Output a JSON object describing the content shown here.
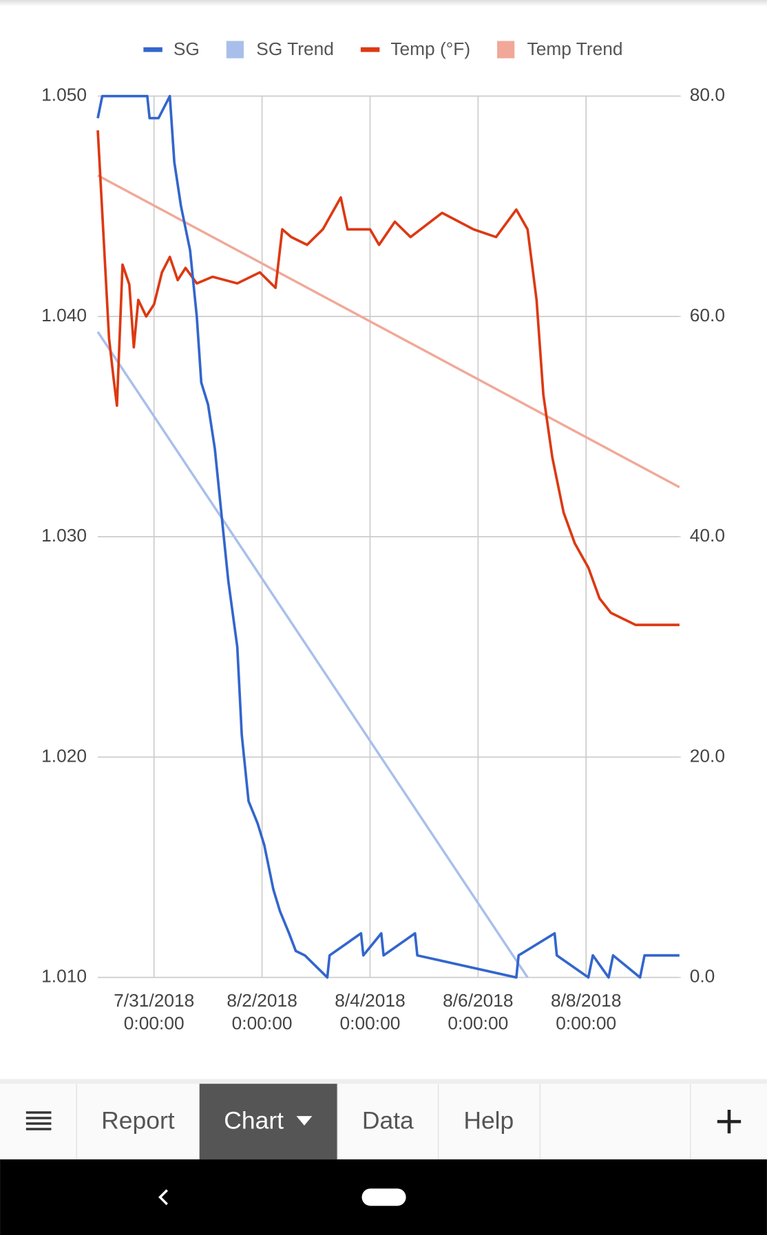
{
  "chart_data": {
    "type": "line",
    "xlim": [
      "2018-07-29T23:00",
      "2018-08-09T17:30"
    ],
    "xticks": [
      {
        "value": "2018-07-31T00:00",
        "label": "7/31/2018 0:00:00"
      },
      {
        "value": "2018-08-02T00:00",
        "label": "8/2/2018 0:00:00"
      },
      {
        "value": "2018-08-04T00:00",
        "label": "8/4/2018 0:00:00"
      },
      {
        "value": "2018-08-06T00:00",
        "label": "8/6/2018 0:00:00"
      },
      {
        "value": "2018-08-08T00:00",
        "label": "8/8/2018 0:00:00"
      }
    ],
    "ylim": [
      1.01,
      1.05
    ],
    "yticks": [
      {
        "value": 1.01,
        "label": "1.010"
      },
      {
        "value": 1.02,
        "label": "1.020"
      },
      {
        "value": 1.03,
        "label": "1.030"
      },
      {
        "value": 1.04,
        "label": "1.040"
      },
      {
        "value": 1.05,
        "label": "1.050"
      }
    ],
    "y2lim": [
      0,
      80
    ],
    "y2ticks": [
      {
        "value": 0,
        "label": "0.0"
      },
      {
        "value": 20,
        "label": "20.0"
      },
      {
        "value": 40,
        "label": "40.0"
      },
      {
        "value": 60,
        "label": "60.0"
      },
      {
        "value": 80,
        "label": "80.0"
      }
    ],
    "grid": true,
    "legend": "top",
    "series": [
      {
        "name": "SG",
        "color": "#3366cc",
        "legend_marker": "line",
        "x": [
          "2018-07-29T23:00",
          "2018-07-30T01:00",
          "2018-07-30T21:00",
          "2018-07-30T22:00",
          "2018-07-31T02:00",
          "2018-07-31T07:00",
          "2018-07-31T09:00",
          "2018-07-31T12:00",
          "2018-07-31T16:00",
          "2018-07-31T19:00",
          "2018-07-31T21:00",
          "2018-08-01T00:00",
          "2018-08-01T03:00",
          "2018-08-01T06:00",
          "2018-08-01T09:00",
          "2018-08-01T13:00",
          "2018-08-01T15:00",
          "2018-08-01T18:00",
          "2018-08-01T22:00",
          "2018-08-02T01:00",
          "2018-08-02T05:00",
          "2018-08-02T08:00",
          "2018-08-02T12:00",
          "2018-08-02T15:00",
          "2018-08-02T19:00",
          "2018-08-03T05:00",
          "2018-08-03T06:00",
          "2018-08-03T20:00",
          "2018-08-03T21:00",
          "2018-08-04T05:00",
          "2018-08-04T06:00",
          "2018-08-04T20:00",
          "2018-08-04T21:00",
          "2018-08-06T17:00",
          "2018-08-06T18:00",
          "2018-08-07T10:00",
          "2018-08-07T11:00",
          "2018-08-08T01:00",
          "2018-08-08T03:00",
          "2018-08-08T10:00",
          "2018-08-08T12:00",
          "2018-08-09T00:00",
          "2018-08-09T02:00",
          "2018-08-09T17:30"
        ],
        "values": [
          1.049,
          1.05,
          1.05,
          1.049,
          1.049,
          1.05,
          1.047,
          1.045,
          1.043,
          1.04,
          1.037,
          1.036,
          1.034,
          1.031,
          1.028,
          1.025,
          1.021,
          1.018,
          1.017,
          1.016,
          1.014,
          1.013,
          1.012,
          1.0112,
          1.011,
          1.01,
          1.011,
          1.012,
          1.011,
          1.012,
          1.011,
          1.012,
          1.011,
          1.01,
          1.011,
          1.012,
          1.011,
          1.01,
          1.011,
          1.01,
          1.011,
          1.01,
          1.011,
          1.011
        ]
      },
      {
        "name": "SG Trend",
        "color": "#a9bfeb",
        "legend_marker": "square",
        "x": [
          "2018-07-29T23:00",
          "2018-08-06T22:00"
        ],
        "values": [
          1.0393,
          1.01
        ]
      },
      {
        "name": "Temp (°F)",
        "color": "#dc3912",
        "legend_marker": "line",
        "axis": "y2",
        "x": [
          "2018-07-29T23:00",
          "2018-07-30T01:00",
          "2018-07-30T04:00",
          "2018-07-30T06:00",
          "2018-07-30T07:30",
          "2018-07-30T10:00",
          "2018-07-30T13:00",
          "2018-07-30T15:00",
          "2018-07-30T17:00",
          "2018-07-30T20:30",
          "2018-07-31T00:00",
          "2018-07-31T03:30",
          "2018-07-31T07:00",
          "2018-07-31T10:30",
          "2018-07-31T14:00",
          "2018-07-31T19:00",
          "2018-08-01T02:00",
          "2018-08-01T13:00",
          "2018-08-01T23:00",
          "2018-08-02T06:00",
          "2018-08-02T09:00",
          "2018-08-02T13:00",
          "2018-08-02T20:00",
          "2018-08-03T03:00",
          "2018-08-03T11:00",
          "2018-08-03T14:00",
          "2018-08-04T00:00",
          "2018-08-04T04:00",
          "2018-08-04T11:00",
          "2018-08-04T18:00",
          "2018-08-05T08:00",
          "2018-08-05T22:00",
          "2018-08-06T08:00",
          "2018-08-06T17:00",
          "2018-08-06T22:00",
          "2018-08-07T02:00",
          "2018-08-07T05:00",
          "2018-08-07T09:00",
          "2018-08-07T14:00",
          "2018-08-07T19:00",
          "2018-08-08T01:00",
          "2018-08-08T06:00",
          "2018-08-08T11:00",
          "2018-08-08T22:00",
          "2018-08-09T17:30"
        ],
        "values": [
          76.9,
          69.4,
          58,
          54.4,
          51.9,
          64.7,
          62.9,
          57.2,
          61.5,
          60,
          61.1,
          64,
          65.4,
          63.3,
          64.4,
          63,
          63.6,
          63,
          64,
          62.6,
          67.9,
          67.2,
          66.5,
          67.9,
          70.8,
          67.9,
          67.9,
          66.5,
          68.6,
          67.2,
          69.4,
          67.9,
          67.2,
          69.7,
          67.9,
          61.5,
          52.9,
          47.2,
          42.2,
          39.4,
          37.2,
          34.4,
          33.1,
          32,
          32
        ]
      },
      {
        "name": "Temp Trend",
        "color": "#f1a898",
        "legend_marker": "square",
        "axis": "y2",
        "x": [
          "2018-07-29T23:00",
          "2018-08-09T17:30"
        ],
        "values": [
          72.8,
          44.5
        ]
      }
    ]
  },
  "ui": {
    "tabs": [
      "Report",
      "Chart",
      "Data",
      "Help"
    ]
  }
}
